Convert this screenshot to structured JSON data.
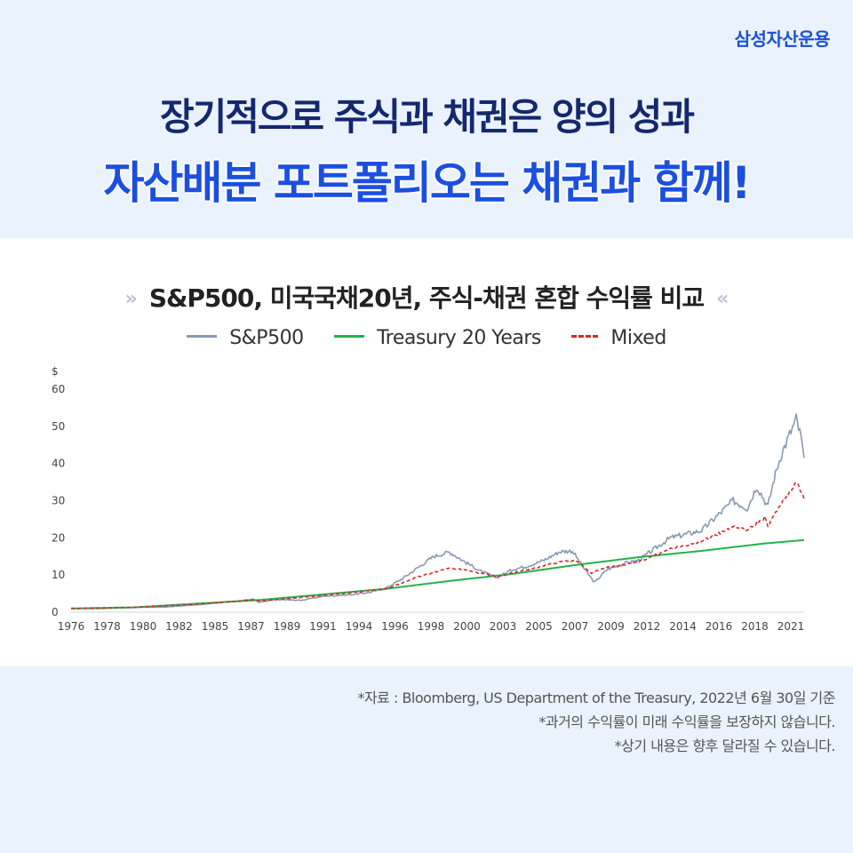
{
  "brand": "삼성자산운용",
  "headline": {
    "line1": "장기적으로 주식과 채권은 양의 성과",
    "line2": "자산배분 포트폴리오는 채권과 함께!"
  },
  "chart_title_deco_left": "»",
  "chart_title_deco_right": "«",
  "chart_data": {
    "type": "line",
    "title": "S&P500, 미국국채20년, 주식-채권 혼합 수익률 비교",
    "ylabel": "$",
    "ylim": [
      0,
      60
    ],
    "y_ticks": [
      "0",
      "10",
      "20",
      "30",
      "40",
      "50",
      "60"
    ],
    "x_ticks": [
      "1976",
      "1978",
      "1980",
      "1982",
      "1985",
      "1987",
      "1989",
      "1991",
      "1994",
      "1996",
      "1998",
      "2000",
      "2003",
      "2005",
      "2007",
      "2009",
      "2012",
      "2014",
      "2016",
      "2018",
      "2021"
    ],
    "x_range": [
      1976,
      2022.5
    ],
    "grid": false,
    "legend_position": "top-center",
    "series": [
      {
        "name": "S&P500",
        "color": "#8a99b4",
        "style": "solid",
        "points": [
          [
            1976,
            1.0
          ],
          [
            1978,
            1.0
          ],
          [
            1980,
            1.3
          ],
          [
            1982,
            1.4
          ],
          [
            1984,
            2.0
          ],
          [
            1986,
            2.8
          ],
          [
            1987.6,
            3.5
          ],
          [
            1987.9,
            2.6
          ],
          [
            1989,
            3.4
          ],
          [
            1990.6,
            3.2
          ],
          [
            1992,
            4.3
          ],
          [
            1994,
            4.8
          ],
          [
            1995,
            5.4
          ],
          [
            1996,
            6.5
          ],
          [
            1997,
            9.0
          ],
          [
            1998,
            12.0
          ],
          [
            1999,
            15.0
          ],
          [
            2000,
            16.2
          ],
          [
            2001,
            13.5
          ],
          [
            2002,
            11.0
          ],
          [
            2003,
            9.3
          ],
          [
            2004,
            11.5
          ],
          [
            2005,
            12.5
          ],
          [
            2006,
            14.0
          ],
          [
            2007,
            16.3
          ],
          [
            2007.8,
            16.5
          ],
          [
            2008.5,
            12.0
          ],
          [
            2009.2,
            8.0
          ],
          [
            2010,
            11.5
          ],
          [
            2011,
            13.0
          ],
          [
            2012,
            14.0
          ],
          [
            2013,
            17.0
          ],
          [
            2014,
            20.0
          ],
          [
            2015,
            21.0
          ],
          [
            2016,
            22.0
          ],
          [
            2017,
            26.0
          ],
          [
            2018,
            30.0
          ],
          [
            2018.9,
            28.0
          ],
          [
            2019.5,
            34.0
          ],
          [
            2020.2,
            28.5
          ],
          [
            2020.6,
            36.0
          ],
          [
            2021,
            42.0
          ],
          [
            2021.5,
            47.0
          ],
          [
            2022,
            52.0
          ],
          [
            2022.3,
            47.0
          ],
          [
            2022.5,
            41.5
          ]
        ]
      },
      {
        "name": "Treasury 20 Years",
        "color": "#22b24c",
        "style": "solid",
        "points": [
          [
            1976,
            1.0
          ],
          [
            1980,
            1.3
          ],
          [
            1984,
            2.3
          ],
          [
            1988,
            3.3
          ],
          [
            1992,
            4.8
          ],
          [
            1996,
            6.3
          ],
          [
            2000,
            8.4
          ],
          [
            2004,
            10.3
          ],
          [
            2008,
            12.7
          ],
          [
            2012,
            14.8
          ],
          [
            2016,
            16.5
          ],
          [
            2020,
            18.5
          ],
          [
            2022.5,
            19.4
          ]
        ]
      },
      {
        "name": "Mixed",
        "color": "#d42a2a",
        "style": "dashed",
        "points": [
          [
            1976,
            1.0
          ],
          [
            1980,
            1.3
          ],
          [
            1984,
            2.2
          ],
          [
            1987.6,
            3.3
          ],
          [
            1988,
            3.0
          ],
          [
            1992,
            4.5
          ],
          [
            1996,
            6.3
          ],
          [
            1998,
            9.5
          ],
          [
            2000,
            12.0
          ],
          [
            2002,
            10.5
          ],
          [
            2003,
            9.5
          ],
          [
            2005,
            11.5
          ],
          [
            2007,
            13.5
          ],
          [
            2008,
            14.0
          ],
          [
            2009,
            10.5
          ],
          [
            2010,
            12.0
          ],
          [
            2012,
            13.5
          ],
          [
            2014,
            17.0
          ],
          [
            2016,
            19.0
          ],
          [
            2018,
            23.0
          ],
          [
            2018.9,
            22.0
          ],
          [
            2020,
            25.5
          ],
          [
            2020.2,
            23.0
          ],
          [
            2021,
            29.0
          ],
          [
            2022,
            35.0
          ],
          [
            2022.5,
            30.5
          ]
        ]
      }
    ]
  },
  "notes": [
    "*자료 : Bloomberg, US Department of the Treasury, 2022년 6월 30일 기준",
    "*과거의 수익률이 미래 수익률을 보장하지 않습니다.",
    "*상기 내용은 향후 달라질 수 있습니다."
  ]
}
